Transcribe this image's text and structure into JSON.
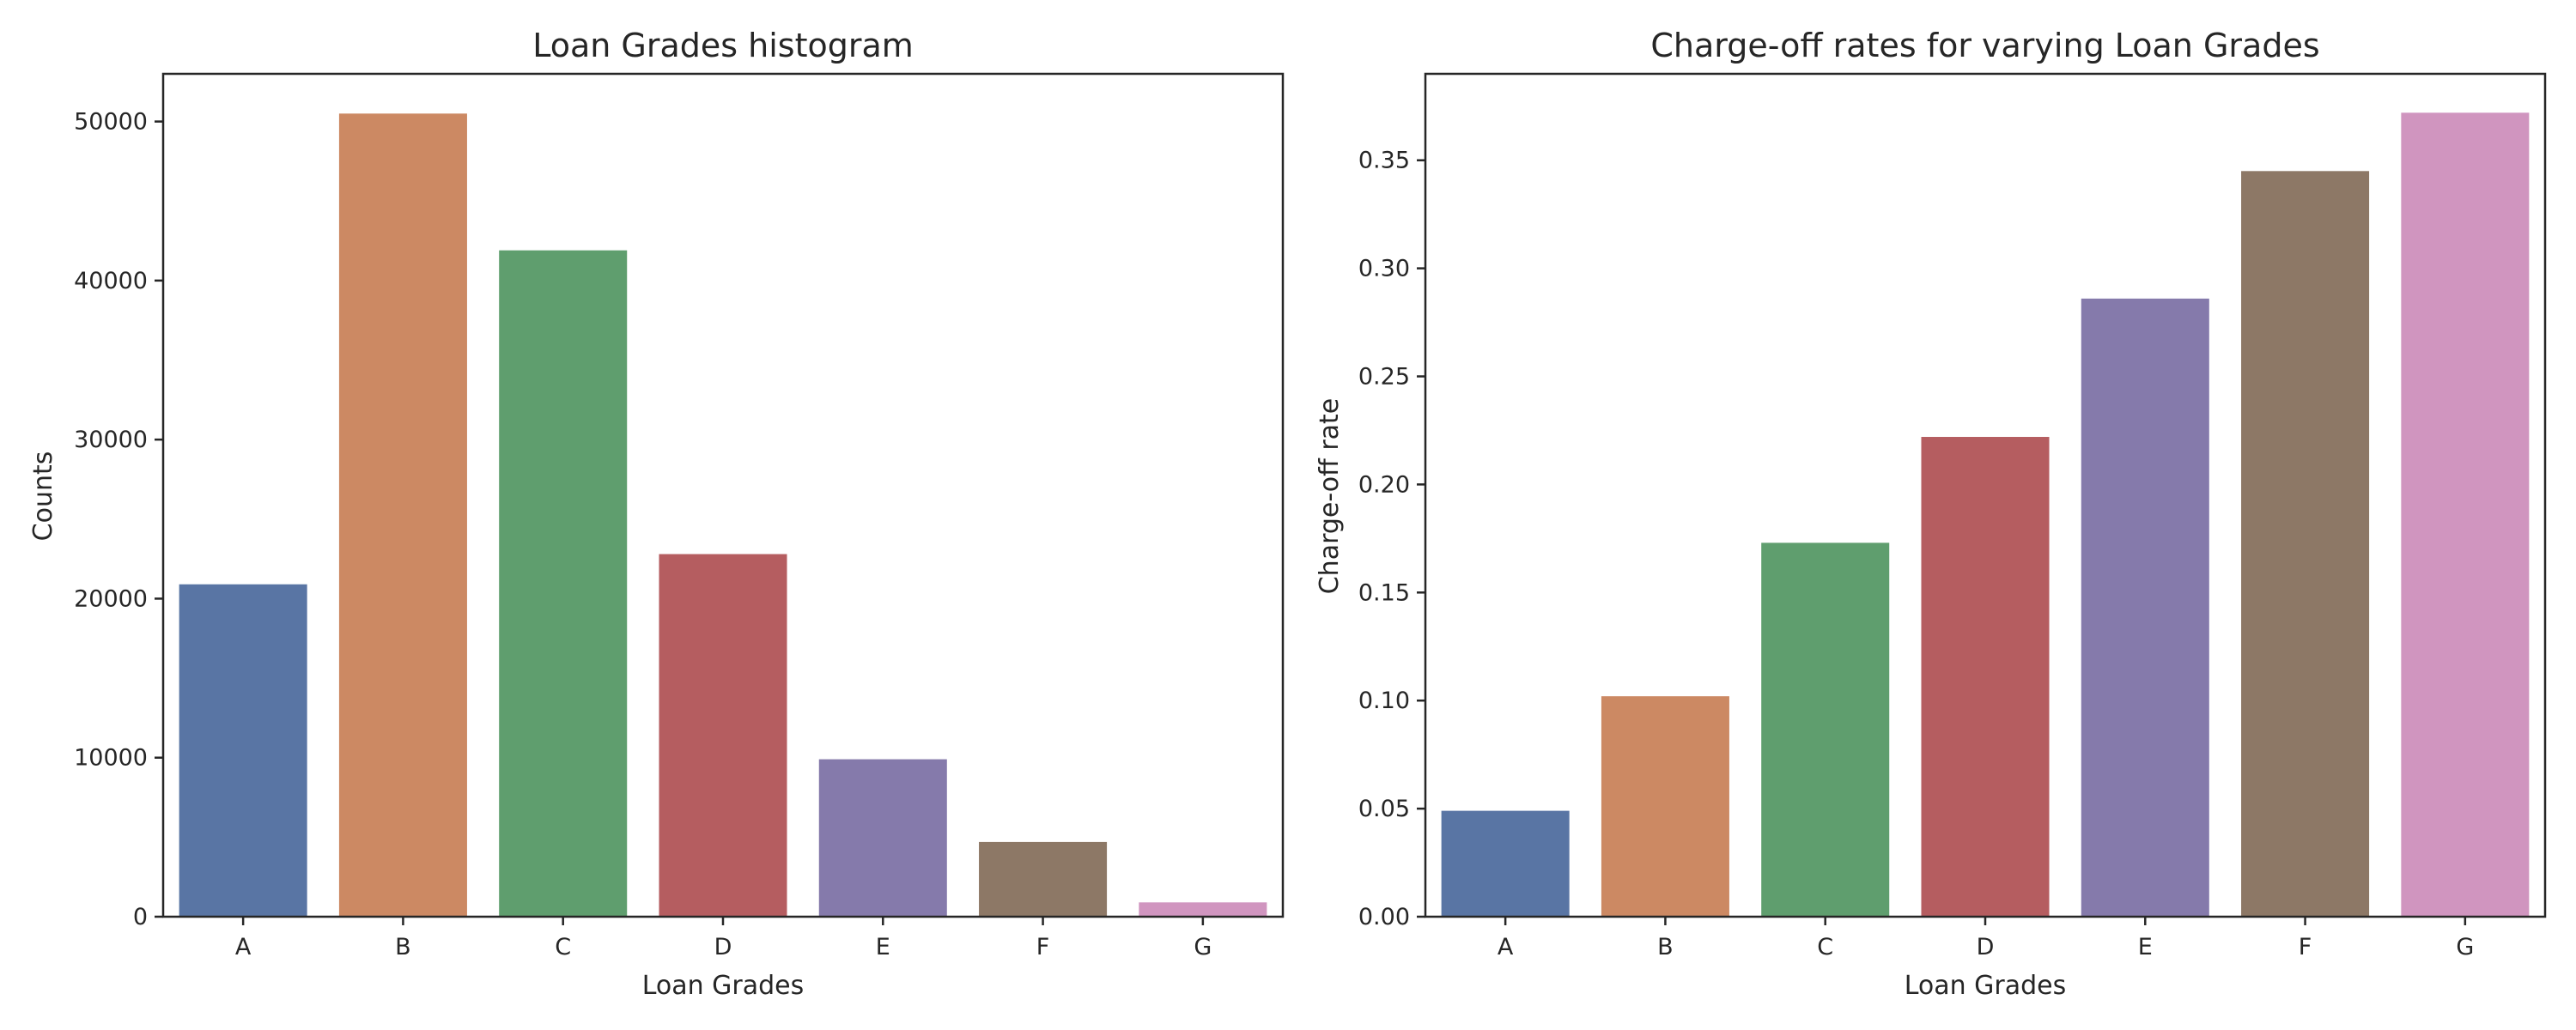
{
  "chart_data": [
    {
      "type": "bar",
      "title": "Loan Grades histogram",
      "xlabel": "Loan Grades",
      "ylabel": "Counts",
      "categories": [
        "A",
        "B",
        "C",
        "D",
        "E",
        "F",
        "G"
      ],
      "values": [
        20900,
        50500,
        41900,
        22800,
        9900,
        4700,
        900
      ],
      "ylim": [
        0,
        53000
      ],
      "yticks": [
        0,
        10000,
        20000,
        30000,
        40000,
        50000
      ],
      "ytick_labels": [
        "0",
        "10000",
        "20000",
        "30000",
        "40000",
        "50000"
      ],
      "colors": [
        "#5975a4",
        "#cc8963",
        "#5f9e6e",
        "#b55d60",
        "#857aab",
        "#8d7866",
        "#d095bf"
      ],
      "grid": false
    },
    {
      "type": "bar",
      "title": "Charge-off rates for varying Loan Grades",
      "xlabel": "Loan Grades",
      "ylabel": "Charge-off rate",
      "categories": [
        "A",
        "B",
        "C",
        "D",
        "E",
        "F",
        "G"
      ],
      "values": [
        0.049,
        0.102,
        0.173,
        0.222,
        0.286,
        0.345,
        0.372
      ],
      "ylim": [
        0,
        0.39
      ],
      "yticks": [
        0,
        0.05,
        0.1,
        0.15,
        0.2,
        0.25,
        0.3,
        0.35
      ],
      "ytick_labels": [
        "0.00",
        "0.05",
        "0.10",
        "0.15",
        "0.20",
        "0.25",
        "0.30",
        "0.35"
      ],
      "colors": [
        "#5975a4",
        "#cc8963",
        "#5f9e6e",
        "#b55d60",
        "#857aab",
        "#8d7866",
        "#d095bf"
      ],
      "grid": false
    }
  ]
}
